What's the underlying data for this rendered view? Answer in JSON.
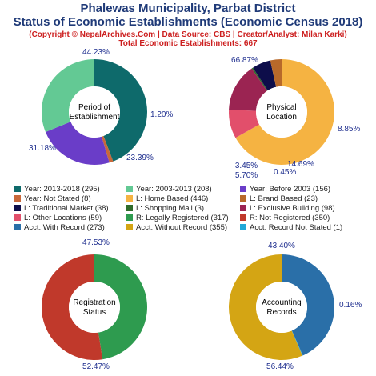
{
  "header": {
    "title_line1": "Phalewas Municipality, Parbat District",
    "title_line2": "Status of Economic Establishments (Economic Census 2018)",
    "credit": "(Copyright © NepalArchives.Com | Data Source: CBS | Creator/Analyst: Milan Karki)",
    "total": "Total Economic Establishments: 667"
  },
  "chart_data": [
    {
      "type": "pie",
      "center_label": [
        "Period of",
        "Establishment"
      ],
      "slices": [
        {
          "label": "Year: 2013-2018",
          "value": 295,
          "pct": "44.23%",
          "color": "#0e6a6b"
        },
        {
          "label": "Year: Not Stated",
          "value": 8,
          "pct": "1.20%",
          "color": "#c8683a"
        },
        {
          "label": "Year: Before 2003",
          "value": 156,
          "pct": "23.39%",
          "color": "#6a3dc8"
        },
        {
          "label": "Year: 2003-2013",
          "value": 208,
          "pct": "31.18%",
          "color": "#63c994"
        }
      ]
    },
    {
      "type": "pie",
      "center_label": [
        "Physical",
        "Location"
      ],
      "slices": [
        {
          "label": "L: Home Based",
          "value": 446,
          "pct": "66.87%",
          "color": "#f5b342"
        },
        {
          "label": "L: Other Locations",
          "value": 59,
          "pct": "8.85%",
          "color": "#e24f6b"
        },
        {
          "label": "L: Exclusive Building",
          "value": 98,
          "pct": "14.69%",
          "color": "#9b2452"
        },
        {
          "label": "L: Shopping Mall",
          "value": 3,
          "pct": "0.45%",
          "color": "#2f6b2a"
        },
        {
          "label": "L: Traditional Market",
          "value": 38,
          "pct": "5.70%",
          "color": "#0d0d4a"
        },
        {
          "label": "L: Brand Based",
          "value": 23,
          "pct": "3.45%",
          "color": "#b8692a"
        }
      ]
    },
    {
      "type": "pie",
      "center_label": [
        "Registration",
        "Status"
      ],
      "slices": [
        {
          "label": "R: Legally Registered",
          "value": 317,
          "pct": "47.53%",
          "color": "#2e9b4f"
        },
        {
          "label": "R: Not Registered",
          "value": 350,
          "pct": "52.47%",
          "color": "#c0392b"
        }
      ]
    },
    {
      "type": "pie",
      "center_label": [
        "Accounting",
        "Records"
      ],
      "slices": [
        {
          "label": "Acct: With Record",
          "value": 273,
          "pct": "43.40%",
          "color": "#2a6fa8"
        },
        {
          "label": "Acct: Record Not Stated",
          "value": 1,
          "pct": "0.16%",
          "color": "#20a8d8"
        },
        {
          "label": "Acct: Without Record",
          "value": 355,
          "pct": "56.44%",
          "color": "#d4a514"
        }
      ]
    }
  ],
  "legend": [
    {
      "text": "Year: 2013-2018 (295)",
      "color": "#0e6a6b"
    },
    {
      "text": "Year: 2003-2013 (208)",
      "color": "#63c994"
    },
    {
      "text": "Year: Before 2003 (156)",
      "color": "#6a3dc8"
    },
    {
      "text": "Year: Not Stated (8)",
      "color": "#c8683a"
    },
    {
      "text": "L: Home Based (446)",
      "color": "#f5b342"
    },
    {
      "text": "L: Brand Based (23)",
      "color": "#b8692a"
    },
    {
      "text": "L: Traditional Market (38)",
      "color": "#0d0d4a"
    },
    {
      "text": "L: Shopping Mall (3)",
      "color": "#2f6b2a"
    },
    {
      "text": "L: Exclusive Building (98)",
      "color": "#9b2452"
    },
    {
      "text": "L: Other Locations (59)",
      "color": "#e24f6b"
    },
    {
      "text": "R: Legally Registered (317)",
      "color": "#2e9b4f"
    },
    {
      "text": "R: Not Registered (350)",
      "color": "#c0392b"
    },
    {
      "text": "Acct: With Record (273)",
      "color": "#2a6fa8"
    },
    {
      "text": "Acct: Without Record (355)",
      "color": "#d4a514"
    },
    {
      "text": "Acct: Record Not Stated (1)",
      "color": "#20a8d8"
    }
  ]
}
